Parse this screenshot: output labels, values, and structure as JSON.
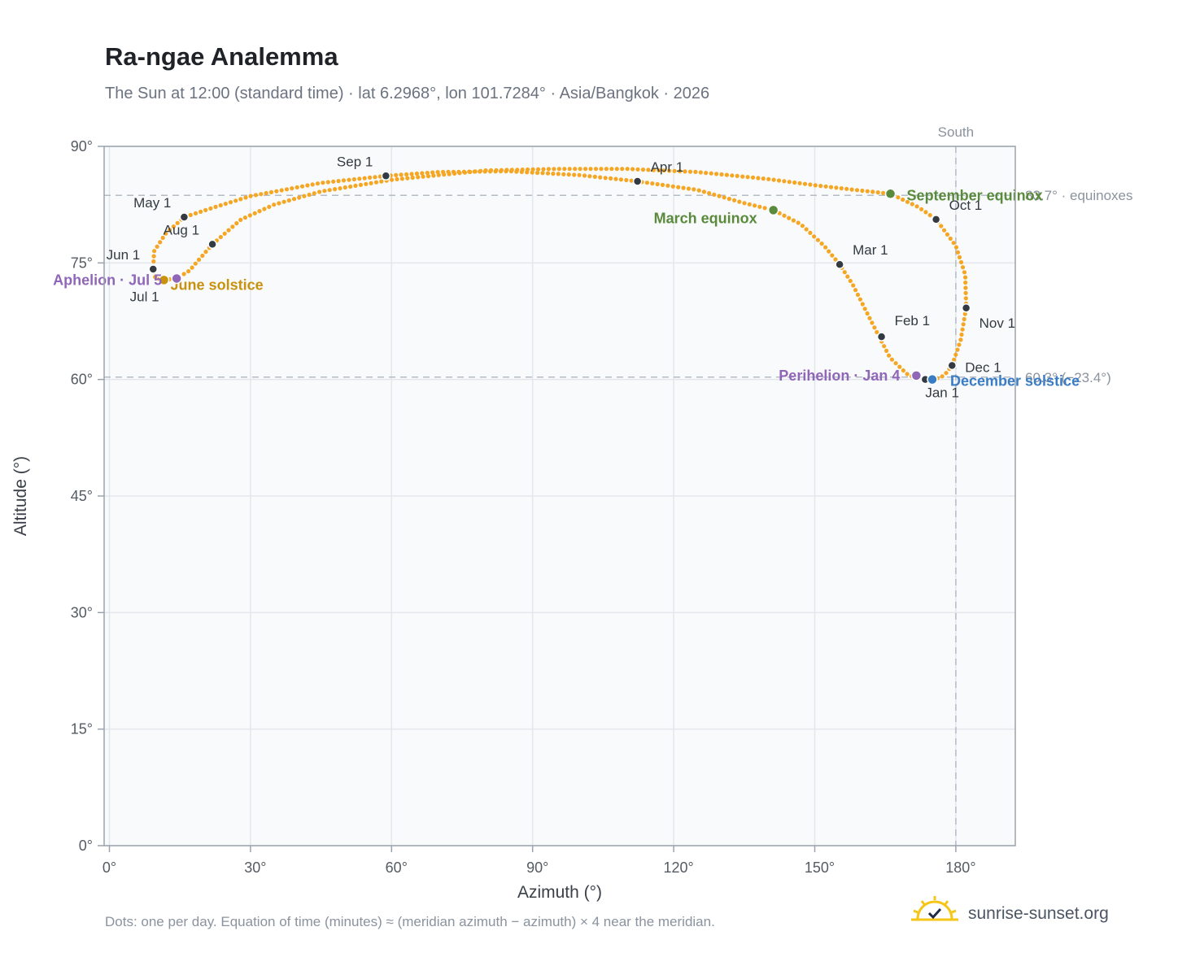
{
  "title": "Ra-ngae Analemma",
  "subtitle": "The Sun at 12:00 (standard time) · lat 6.2968°, lon 101.7284° · Asia/Bangkok · 2026",
  "footnote": "Dots: one per day. Equation of time (minutes) ≈ (meridian azimuth − azimuth) × 4 near the meridian.",
  "brand": {
    "text": "sunrise-sunset.org",
    "icon": "sun-check-icon",
    "color": "#f5c518"
  },
  "chart_data": {
    "type": "scatter",
    "title": "Ra-ngae Analemma",
    "xlabel": "Azimuth (°)",
    "ylabel": "Altitude (°)",
    "xlim": [
      -1,
      192
    ],
    "ylim": [
      0,
      90
    ],
    "xticks": [
      0,
      30,
      60,
      90,
      120,
      150,
      180
    ],
    "xtick_labels": [
      "0°",
      "30°",
      "60°",
      "90°",
      "120°",
      "150°",
      "180°"
    ],
    "yticks": [
      0,
      15,
      30,
      45,
      60,
      75,
      90
    ],
    "ytick_labels": [
      "0°",
      "15°",
      "30°",
      "45°",
      "60°",
      "75°",
      "90°"
    ],
    "grid": true,
    "series_color": "#f5a623",
    "south_line": {
      "x": 180,
      "label": "South"
    },
    "ref_lines": [
      {
        "y": 83.7,
        "label": "83.7° · equinoxes"
      },
      {
        "y": 60.3,
        "label": "60.3° (−23.4°)"
      }
    ],
    "path": [
      [
        173.9,
        60.0
      ],
      [
        170,
        60.5
      ],
      [
        166,
        62.8
      ],
      [
        162,
        67.5
      ],
      [
        158,
        72.3
      ],
      [
        155.3,
        74.8
      ],
      [
        152,
        77.2
      ],
      [
        147,
        80.0
      ],
      [
        141.2,
        81.8
      ],
      [
        135,
        82.7
      ],
      [
        125,
        84.4
      ],
      [
        112.3,
        85.5
      ],
      [
        100,
        86.3
      ],
      [
        85,
        86.8
      ],
      [
        70,
        86.7
      ],
      [
        58.8,
        86.2
      ],
      [
        45,
        85.3
      ],
      [
        30,
        83.6
      ],
      [
        22,
        82.1
      ],
      [
        15.9,
        80.9
      ],
      [
        12,
        78.8
      ],
      [
        9.5,
        76.5
      ],
      [
        9.3,
        74.2
      ],
      [
        9.8,
        73.0
      ],
      [
        11.6,
        72.8
      ],
      [
        14.3,
        73.0
      ],
      [
        17,
        74.0
      ],
      [
        21.9,
        77.4
      ],
      [
        28,
        80.6
      ],
      [
        35,
        82.5
      ],
      [
        45,
        84.2
      ],
      [
        60,
        85.7
      ],
      [
        80,
        86.9
      ],
      [
        95,
        87.1
      ],
      [
        110,
        87.1
      ],
      [
        125,
        86.7
      ],
      [
        140,
        85.8
      ],
      [
        150,
        85.0
      ],
      [
        160,
        84.3
      ],
      [
        166.1,
        83.9
      ],
      [
        172,
        82.2
      ],
      [
        175.8,
        80.6
      ],
      [
        180,
        77.2
      ],
      [
        182,
        73.5
      ],
      [
        182.2,
        69.2
      ],
      [
        181,
        65.0
      ],
      [
        179.2,
        61.8
      ],
      [
        177.5,
        60.5
      ],
      [
        175.5,
        60.0
      ],
      [
        173.9,
        60.0
      ]
    ],
    "month_markers": [
      {
        "label": "Jan 1",
        "x": 173.5,
        "y": 60.0
      },
      {
        "label": "Feb 1",
        "x": 164.2,
        "y": 65.5
      },
      {
        "label": "Mar 1",
        "x": 155.3,
        "y": 74.8
      },
      {
        "label": "Apr 1",
        "x": 112.3,
        "y": 85.5
      },
      {
        "label": "May 1",
        "x": 15.9,
        "y": 80.9
      },
      {
        "label": "Jun 1",
        "x": 9.3,
        "y": 74.2
      },
      {
        "label": "Jul 1",
        "x": 11.6,
        "y": 72.8
      },
      {
        "label": "Aug 1",
        "x": 21.9,
        "y": 77.4
      },
      {
        "label": "Sep 1",
        "x": 58.8,
        "y": 86.2
      },
      {
        "label": "Oct 1",
        "x": 175.8,
        "y": 80.6
      },
      {
        "label": "Nov 1",
        "x": 182.2,
        "y": 69.2
      },
      {
        "label": "Dec 1",
        "x": 179.2,
        "y": 61.8
      }
    ],
    "events": [
      {
        "label": "June solstice",
        "x": 11.6,
        "y": 72.8,
        "color": "#c8920f"
      },
      {
        "label": "Aphelion · Jul 5",
        "x": 14.3,
        "y": 73.0,
        "color": "#9066b8"
      },
      {
        "label": "March equinox",
        "x": 141.2,
        "y": 81.8,
        "color": "#5a8a3c"
      },
      {
        "label": "September equinox",
        "x": 166.1,
        "y": 83.9,
        "color": "#5a8a3c"
      },
      {
        "label": "Perihelion · Jan 4",
        "x": 171.6,
        "y": 60.5,
        "color": "#9066b8"
      },
      {
        "label": "December solstice",
        "x": 175.0,
        "y": 60.0,
        "color": "#3b7dc4"
      }
    ]
  }
}
